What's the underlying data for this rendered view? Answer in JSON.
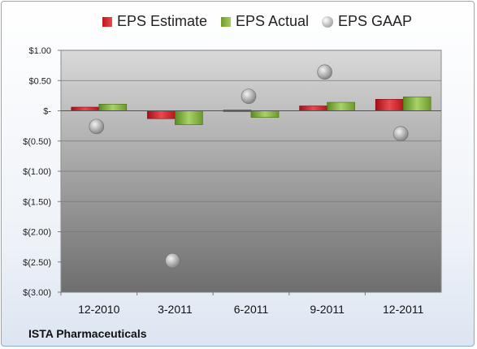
{
  "footer": {
    "company": "ISTA Pharmaceuticals"
  },
  "colors": {
    "estimate": "#d42126",
    "actual": "#86b33f",
    "gaap": "#b0b0b0"
  },
  "chart_data": {
    "type": "bar",
    "categories": [
      "12-2010",
      "3-2011",
      "6-2011",
      "9-2011",
      "12-2011"
    ],
    "series": [
      {
        "name": "EPS Estimate",
        "values": [
          0.06,
          -0.13,
          0.01,
          0.08,
          0.19
        ]
      },
      {
        "name": "EPS Actual",
        "values": [
          0.11,
          -0.23,
          -0.11,
          0.14,
          0.23
        ]
      },
      {
        "name": "EPS GAAP",
        "type": "scatter",
        "values": [
          -0.26,
          -2.48,
          0.24,
          0.64,
          -0.38
        ]
      }
    ],
    "ylim": [
      -3.0,
      1.0
    ],
    "yticks": [
      1.0,
      0.5,
      0,
      -0.5,
      -1.0,
      -1.5,
      -2.0,
      -2.5,
      -3.0
    ],
    "ytick_labels": [
      "$1.00",
      "$0.50",
      "$-",
      "$(0.50)",
      "$(1.00)",
      "$(1.50)",
      "$(2.00)",
      "$(2.50)",
      "$(3.00)"
    ],
    "legend": "top",
    "grid": true
  }
}
